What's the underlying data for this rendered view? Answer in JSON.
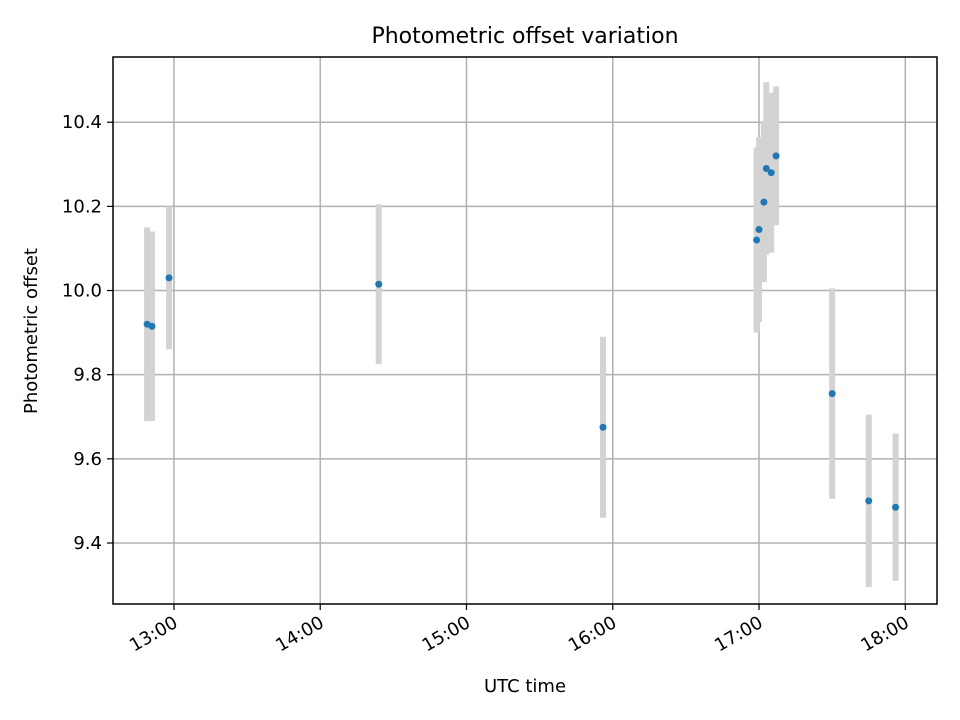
{
  "chart_data": {
    "type": "scatter",
    "title": "Photometric offset variation",
    "xlabel": "UTC time",
    "ylabel": "Photometric offset",
    "x_unit": "UTC time (HH:MM)",
    "xlim": [
      "12:35",
      "18:13"
    ],
    "ylim": [
      9.255,
      10.555
    ],
    "x_ticks": [
      "13:00",
      "14:00",
      "15:00",
      "16:00",
      "17:00",
      "18:00"
    ],
    "y_ticks": [
      9.4,
      9.6,
      9.8,
      10.0,
      10.2,
      10.4
    ],
    "y_tick_labels": [
      "9.4",
      "9.6",
      "9.8",
      "10.0",
      "10.2",
      "10.4"
    ],
    "grid": true,
    "errorbar_color": "#d3d3d3",
    "marker_color": "#1f77b4",
    "points": [
      {
        "x": "12:49",
        "y": 9.92,
        "yerr": 0.23
      },
      {
        "x": "12:51",
        "y": 9.915,
        "yerr": 0.225
      },
      {
        "x": "12:58",
        "y": 10.03,
        "yerr": 0.17
      },
      {
        "x": "14:24",
        "y": 10.015,
        "yerr": 0.19
      },
      {
        "x": "15:56",
        "y": 9.675,
        "yerr": 0.215
      },
      {
        "x": "16:59",
        "y": 10.12,
        "yerr": 0.22
      },
      {
        "x": "17:00",
        "y": 10.145,
        "yerr": 0.22
      },
      {
        "x": "17:02",
        "y": 10.21,
        "yerr": 0.19
      },
      {
        "x": "17:03",
        "y": 10.29,
        "yerr": 0.205
      },
      {
        "x": "17:05",
        "y": 10.28,
        "yerr": 0.19
      },
      {
        "x": "17:07",
        "y": 10.32,
        "yerr": 0.165
      },
      {
        "x": "17:30",
        "y": 9.755,
        "yerr": 0.25
      },
      {
        "x": "17:45",
        "y": 9.5,
        "yerr": 0.205
      },
      {
        "x": "17:56",
        "y": 9.485,
        "yerr": 0.175
      }
    ]
  }
}
